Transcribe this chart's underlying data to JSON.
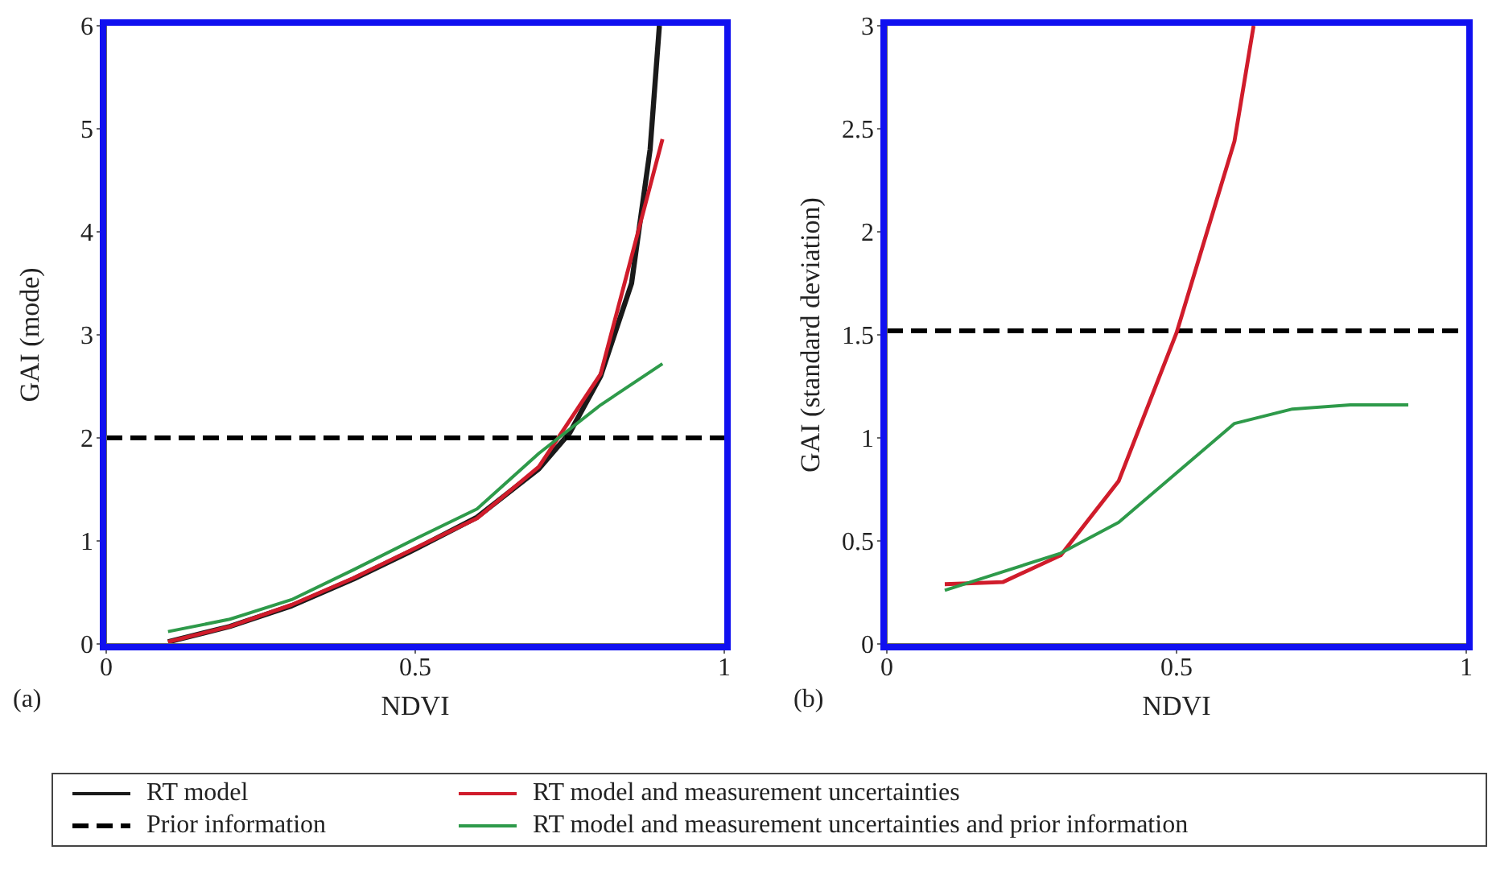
{
  "chart_data": [
    {
      "type": "line",
      "xlabel": "NDVI",
      "ylabel": "GAI (mode)",
      "annotations": [
        "(a)"
      ],
      "xlim": [
        0,
        1
      ],
      "xticks": [
        0,
        0.5,
        1
      ],
      "ylim": [
        0,
        6
      ],
      "yticks": [
        0,
        1,
        2,
        3,
        4,
        5,
        6
      ],
      "grid": false,
      "legend": "bottom",
      "marker": "none",
      "series": [
        {
          "name": "RT model",
          "color": "#1a1a1a",
          "x": [
            0.1,
            0.2,
            0.3,
            0.4,
            0.5,
            0.6,
            0.7,
            0.75,
            0.8,
            0.85,
            0.88,
            0.895
          ],
          "values": [
            0.02,
            0.17,
            0.37,
            0.63,
            0.92,
            1.23,
            1.7,
            2.05,
            2.6,
            3.5,
            4.8,
            6.0
          ]
        },
        {
          "name": "Prior information",
          "color": "#000000",
          "line_style": "dashed",
          "x": [
            0,
            1
          ],
          "values": [
            2,
            2
          ]
        },
        {
          "name": "RT model and measurement uncertainties",
          "color": "#d01c2b",
          "x": [
            0.1,
            0.2,
            0.3,
            0.4,
            0.5,
            0.6,
            0.7,
            0.8,
            0.9
          ],
          "values": [
            0.02,
            0.17,
            0.38,
            0.64,
            0.93,
            1.22,
            1.72,
            2.62,
            4.9
          ]
        },
        {
          "name": "RT model and measurement uncertainties and prior information",
          "color": "#2e9a4a",
          "x": [
            0.1,
            0.2,
            0.3,
            0.4,
            0.5,
            0.6,
            0.7,
            0.8,
            0.9
          ],
          "values": [
            0.12,
            0.24,
            0.43,
            0.72,
            1.02,
            1.31,
            1.85,
            2.32,
            2.72
          ]
        }
      ]
    },
    {
      "type": "line",
      "xlabel": "NDVI",
      "ylabel": "GAI (standard deviation)",
      "annotations": [
        "(b)"
      ],
      "xlim": [
        0,
        1
      ],
      "xticks": [
        0,
        0.5,
        1
      ],
      "ylim": [
        0,
        3
      ],
      "yticks": [
        0,
        0.5,
        1,
        1.5,
        2,
        2.5,
        3
      ],
      "grid": false,
      "marker": "none",
      "series": [
        {
          "name": "Prior information",
          "color": "#000000",
          "line_style": "dashed",
          "x": [
            0,
            1
          ],
          "values": [
            1.52,
            1.52
          ]
        },
        {
          "name": "RT model and measurement uncertainties",
          "color": "#d01c2b",
          "x": [
            0.1,
            0.2,
            0.3,
            0.4,
            0.5,
            0.6,
            0.633
          ],
          "values": [
            0.29,
            0.3,
            0.43,
            0.79,
            1.51,
            2.44,
            3.0
          ]
        },
        {
          "name": "RT model and measurement uncertainties and prior information",
          "color": "#2e9a4a",
          "x": [
            0.1,
            0.2,
            0.3,
            0.4,
            0.5,
            0.6,
            0.7,
            0.8,
            0.9
          ],
          "values": [
            0.26,
            0.35,
            0.44,
            0.59,
            0.83,
            1.07,
            1.14,
            1.16,
            1.16
          ]
        }
      ]
    }
  ]
}
